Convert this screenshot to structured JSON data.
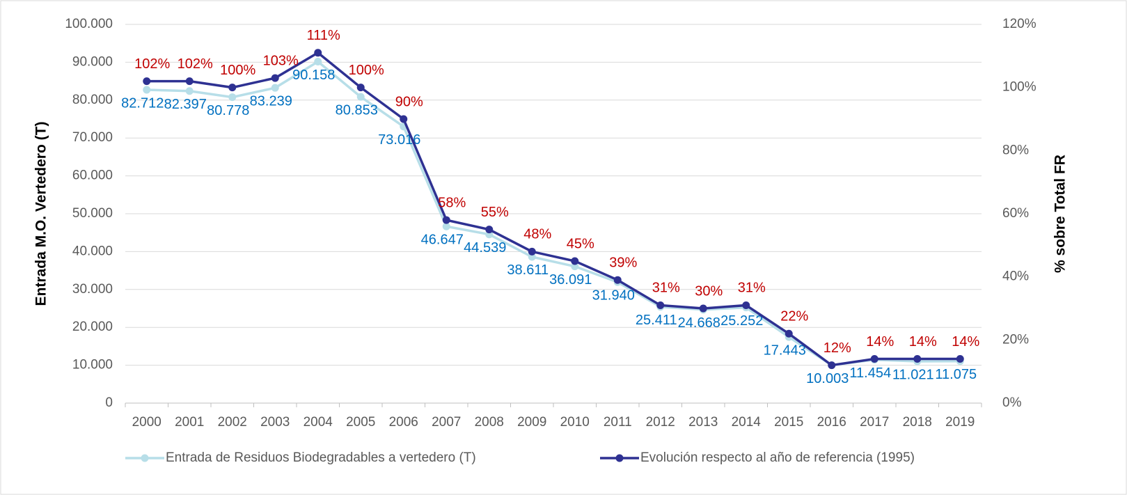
{
  "chart_data": {
    "type": "line",
    "categories": [
      "2000",
      "2001",
      "2002",
      "2003",
      "2004",
      "2005",
      "2006",
      "2007",
      "2008",
      "2009",
      "2010",
      "2011",
      "2012",
      "2013",
      "2014",
      "2015",
      "2016",
      "2017",
      "2018",
      "2019"
    ],
    "series": [
      {
        "name": "Entrada de Residuos Biodegradables a vertedero (T)",
        "color": "#b7dee8",
        "label_color": "#0070c0",
        "values": [
          82712,
          82397,
          80778,
          83239,
          90158,
          80853,
          73016,
          46647,
          44539,
          38611,
          36091,
          31940,
          25411,
          24668,
          25252,
          17443,
          10003,
          11454,
          11021,
          11075
        ],
        "value_labels": [
          "82.712",
          "82.397",
          "80.778",
          "83.239",
          "90.158",
          "80.853",
          "73.016",
          "46.647",
          "44.539",
          "38.611",
          "36.091",
          "31.940",
          "25.411",
          "24.668",
          "25.252",
          "17.443",
          "10.003",
          "11.454",
          "11.021",
          "11.075"
        ]
      },
      {
        "name": "Evolución respecto al año de referencia (1995)",
        "color": "#2e3192",
        "label_color": "#c00000",
        "axis": "y2",
        "values": [
          102,
          102,
          100,
          103,
          111,
          100,
          90,
          58,
          55,
          48,
          45,
          39,
          31,
          30,
          31,
          22,
          12,
          14,
          14,
          14
        ],
        "value_labels": [
          "102%",
          "102%",
          "100%",
          "103%",
          "111%",
          "100%",
          "90%",
          "58%",
          "55%",
          "48%",
          "45%",
          "39%",
          "31%",
          "30%",
          "31%",
          "22%",
          "12%",
          "14%",
          "14%",
          "14%"
        ]
      }
    ],
    "ylabel": "Entrada M.O. Vertedero (T)",
    "y2label": "% sobre Total FR",
    "ylim": [
      0,
      100000
    ],
    "yticks": [
      {
        "value": 0,
        "label": "0"
      },
      {
        "value": 10000,
        "label": "10.000"
      },
      {
        "value": 20000,
        "label": "20.000"
      },
      {
        "value": 30000,
        "label": "30.000"
      },
      {
        "value": 40000,
        "label": "40.000"
      },
      {
        "value": 50000,
        "label": "50.000"
      },
      {
        "value": 60000,
        "label": "60.000"
      },
      {
        "value": 70000,
        "label": "70.000"
      },
      {
        "value": 80000,
        "label": "80.000"
      },
      {
        "value": 90000,
        "label": "90.000"
      },
      {
        "value": 100000,
        "label": "100.000"
      }
    ],
    "y2lim": [
      0,
      120
    ],
    "y2ticks": [
      {
        "value": 0,
        "label": "0%"
      },
      {
        "value": 20,
        "label": "20%"
      },
      {
        "value": 40,
        "label": "40%"
      },
      {
        "value": 60,
        "label": "60%"
      },
      {
        "value": 80,
        "label": "80%"
      },
      {
        "value": 100,
        "label": "100%"
      },
      {
        "value": 120,
        "label": "120%"
      }
    ],
    "grid": true,
    "legend": "bottom"
  }
}
